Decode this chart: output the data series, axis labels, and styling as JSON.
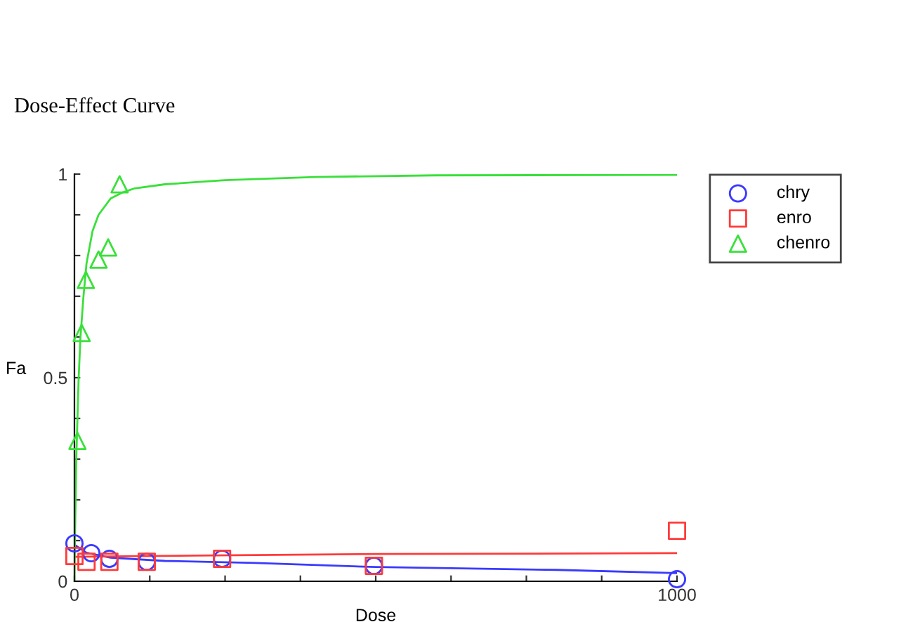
{
  "chart_data": {
    "type": "scatter",
    "title": "Dose-Effect Curve",
    "xlabel": "Dose",
    "ylabel": "Fa",
    "xlim": [
      0,
      1000
    ],
    "ylim": [
      0,
      1
    ],
    "xticks": [
      0,
      {
        "value": 125,
        "label": null
      },
      {
        "value": 250,
        "label": null
      },
      {
        "value": 375,
        "label": null
      },
      {
        "value": 500,
        "label": null
      },
      {
        "value": 625,
        "label": null
      },
      {
        "value": 750,
        "label": null
      },
      {
        "value": 875,
        "label": null
      },
      1000
    ],
    "yticks": [
      0,
      {
        "value": 0.1,
        "label": null
      },
      {
        "value": 0.2,
        "label": null
      },
      {
        "value": 0.3,
        "label": null
      },
      {
        "value": 0.4,
        "label": null
      },
      0.5,
      {
        "value": 0.6,
        "label": null
      },
      {
        "value": 0.7,
        "label": null
      },
      {
        "value": 0.8,
        "label": null
      },
      {
        "value": 0.9,
        "label": null
      },
      1
    ],
    "grid": false,
    "legend": "top right",
    "series": [
      {
        "name": "chry",
        "marker": "circle",
        "color": "#3a3aff",
        "x": [
          0,
          28,
          58,
          120,
          245,
          497,
          1000
        ],
        "values": [
          0.093,
          0.069,
          0.055,
          0.048,
          0.055,
          0.038,
          0.005
        ]
      },
      {
        "name": "enro",
        "marker": "square",
        "color": "#ff3a3a",
        "x": [
          0,
          20,
          58,
          120,
          245,
          497,
          1000
        ],
        "values": [
          0.062,
          0.048,
          0.048,
          0.048,
          0.055,
          0.038,
          0.124
        ]
      },
      {
        "name": "chenro",
        "marker": "triangle",
        "color": "#3ae03a",
        "x": [
          5,
          12,
          19,
          40,
          56,
          75
        ],
        "values": [
          0.345,
          0.61,
          0.74,
          0.79,
          0.82,
          0.975
        ]
      },
      {
        "type": "line",
        "marker": "none",
        "color": "#3a3aff",
        "x": [
          0,
          20,
          60,
          150,
          300,
          500,
          800,
          1000
        ],
        "values": [
          0.09,
          0.07,
          0.058,
          0.05,
          0.045,
          0.035,
          0.028,
          0.02
        ]
      },
      {
        "type": "line",
        "marker": "none",
        "color": "#ff3a3a",
        "x": [
          0,
          200,
          500,
          1000
        ],
        "values": [
          0.06,
          0.063,
          0.067,
          0.069
        ]
      },
      {
        "type": "line",
        "marker": "none",
        "color": "#3ae03a",
        "x": [
          0,
          1,
          2,
          3,
          5,
          7,
          10,
          15,
          20,
          30,
          40,
          60,
          80,
          100,
          150,
          250,
          400,
          600,
          1000
        ],
        "values": [
          0,
          0.12,
          0.2,
          0.3,
          0.4,
          0.5,
          0.6,
          0.7,
          0.78,
          0.86,
          0.9,
          0.94,
          0.955,
          0.965,
          0.975,
          0.985,
          0.993,
          0.997,
          0.998
        ]
      }
    ]
  }
}
